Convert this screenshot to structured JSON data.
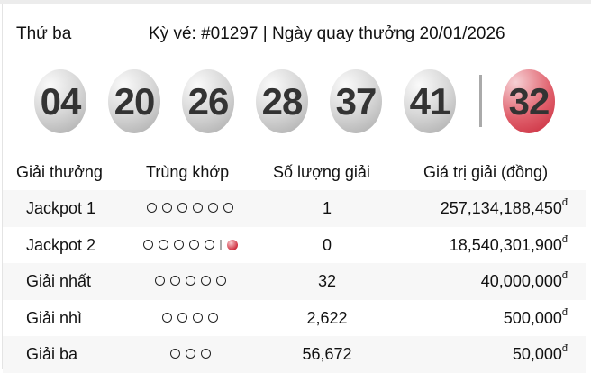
{
  "header": {
    "day": "Thứ ba",
    "info": "Kỳ vé: #01297 | Ngày quay thưởng 20/01/2026"
  },
  "balls": [
    "04",
    "20",
    "26",
    "28",
    "37",
    "41"
  ],
  "power_ball": "32",
  "colors": {
    "power_ball": "#d0283a",
    "row_alt": "#f7f7f7"
  },
  "table": {
    "headers": [
      "Giải thưởng",
      "Trùng khớp",
      "Số lượng giải",
      "Giá trị giải (đồng)"
    ],
    "currency": "đ",
    "rows": [
      {
        "name": "Jackpot 1",
        "match": 6,
        "power": false,
        "qty": "1",
        "value": "257,134,188,450"
      },
      {
        "name": "Jackpot 2",
        "match": 5,
        "power": true,
        "qty": "0",
        "value": "18,540,301,900"
      },
      {
        "name": "Giải nhất",
        "match": 5,
        "power": false,
        "qty": "32",
        "value": "40,000,000"
      },
      {
        "name": "Giải nhì",
        "match": 4,
        "power": false,
        "qty": "2,622",
        "value": "500,000"
      },
      {
        "name": "Giải ba",
        "match": 3,
        "power": false,
        "qty": "56,672",
        "value": "50,000"
      }
    ]
  }
}
